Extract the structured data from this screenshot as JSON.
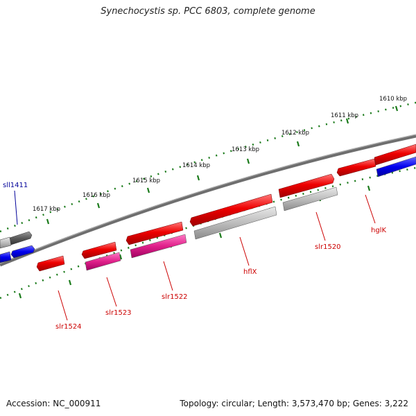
{
  "title": "Synechocystis sp. PCC 6803, complete genome",
  "footer": {
    "accession": "Accession: NC_000911",
    "summary": "Topology: circular; Length: 3,573,470 bp; Genes: 3,222"
  },
  "ticks": [
    "1610 kbp",
    "1611 kbp",
    "1612 kbp",
    "1613 kbp",
    "1614 kbp",
    "1615 kbp",
    "1616 kbp",
    "1617 kbp"
  ],
  "genes": [
    {
      "label": "sll1411",
      "color": "#000099"
    },
    {
      "label": "slr1524",
      "color": "#cc0000"
    },
    {
      "label": "slr1523",
      "color": "#cc0000"
    },
    {
      "label": "slr1522",
      "color": "#cc0000"
    },
    {
      "label": "hflX",
      "color": "#cc0000"
    },
    {
      "label": "slr1520",
      "color": "#cc0000"
    },
    {
      "label": "hglK",
      "color": "#cc0000"
    }
  ],
  "colors": {
    "backbone": "#707070",
    "tick_track": "#1a7a1a",
    "red_gene": "#ee0000",
    "gray_gene": "#b8b8b8",
    "magenta_gene": "#e0208a",
    "blue_gene": "#0000ee",
    "dark_gray_gene": "#555555"
  }
}
